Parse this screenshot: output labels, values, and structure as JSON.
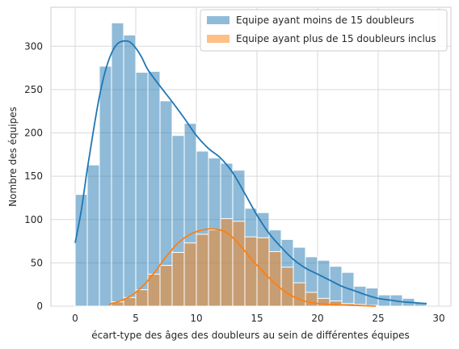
{
  "chart_data": {
    "type": "bar",
    "xlabel": "écart-type des âges des doubleurs au sein de différentes équipes",
    "ylabel": "Nombre des équipes",
    "xlim": [
      -2,
      31
    ],
    "ylim": [
      0,
      345
    ],
    "xticks": [
      0,
      5,
      10,
      15,
      20,
      25,
      30
    ],
    "yticks": [
      0,
      50,
      100,
      150,
      200,
      250,
      300
    ],
    "grid": true,
    "legend_position": "top-right",
    "series": [
      {
        "name": "Equipe ayant moins de 15 doubleurs",
        "color": "#1f77b4",
        "bin_start": 0,
        "bin_width": 1,
        "values": [
          129,
          163,
          277,
          327,
          313,
          270,
          271,
          237,
          197,
          211,
          179,
          171,
          165,
          157,
          113,
          108,
          88,
          77,
          68,
          57,
          53,
          46,
          39,
          23,
          21,
          13,
          13,
          9,
          4,
          0
        ],
        "kde": [
          [
            0,
            73
          ],
          [
            0.5,
            110
          ],
          [
            1,
            158
          ],
          [
            1.5,
            202
          ],
          [
            2,
            242
          ],
          [
            2.5,
            272
          ],
          [
            3,
            292
          ],
          [
            3.5,
            303
          ],
          [
            4,
            306
          ],
          [
            4.5,
            305
          ],
          [
            5,
            298
          ],
          [
            5.5,
            287
          ],
          [
            6,
            273
          ],
          [
            7,
            254
          ],
          [
            8,
            236
          ],
          [
            9,
            217
          ],
          [
            10,
            197
          ],
          [
            11,
            182
          ],
          [
            12,
            171
          ],
          [
            13,
            154
          ],
          [
            14,
            130
          ],
          [
            15,
            105
          ],
          [
            16,
            84
          ],
          [
            17,
            68
          ],
          [
            18,
            54
          ],
          [
            19,
            44
          ],
          [
            20,
            37
          ],
          [
            21,
            30
          ],
          [
            22,
            23
          ],
          [
            23,
            18
          ],
          [
            24,
            13
          ],
          [
            25,
            9
          ],
          [
            26,
            7
          ],
          [
            27,
            5
          ],
          [
            28,
            4
          ],
          [
            29,
            3
          ]
        ]
      },
      {
        "name": "Equipe ayant plus de 15 doubleurs inclus",
        "color": "#ff7f0e",
        "bin_start": 3,
        "bin_width": 1,
        "values": [
          5,
          10,
          19,
          37,
          47,
          62,
          73,
          83,
          88,
          101,
          98,
          80,
          79,
          63,
          45,
          27,
          16,
          9,
          6,
          3,
          2,
          1
        ],
        "kde": [
          [
            2.8,
            2
          ],
          [
            3.5,
            5
          ],
          [
            4.5,
            11
          ],
          [
            5.5,
            22
          ],
          [
            6.5,
            38
          ],
          [
            7.5,
            57
          ],
          [
            8.5,
            73
          ],
          [
            9.5,
            83
          ],
          [
            10.5,
            88
          ],
          [
            11.5,
            89
          ],
          [
            12.5,
            85
          ],
          [
            13.5,
            72
          ],
          [
            14.5,
            55
          ],
          [
            15.5,
            40
          ],
          [
            16.5,
            26
          ],
          [
            17.5,
            15
          ],
          [
            18.5,
            8
          ],
          [
            19.5,
            4
          ],
          [
            21,
            2
          ],
          [
            23,
            1
          ],
          [
            24.8,
            0
          ]
        ]
      }
    ]
  }
}
